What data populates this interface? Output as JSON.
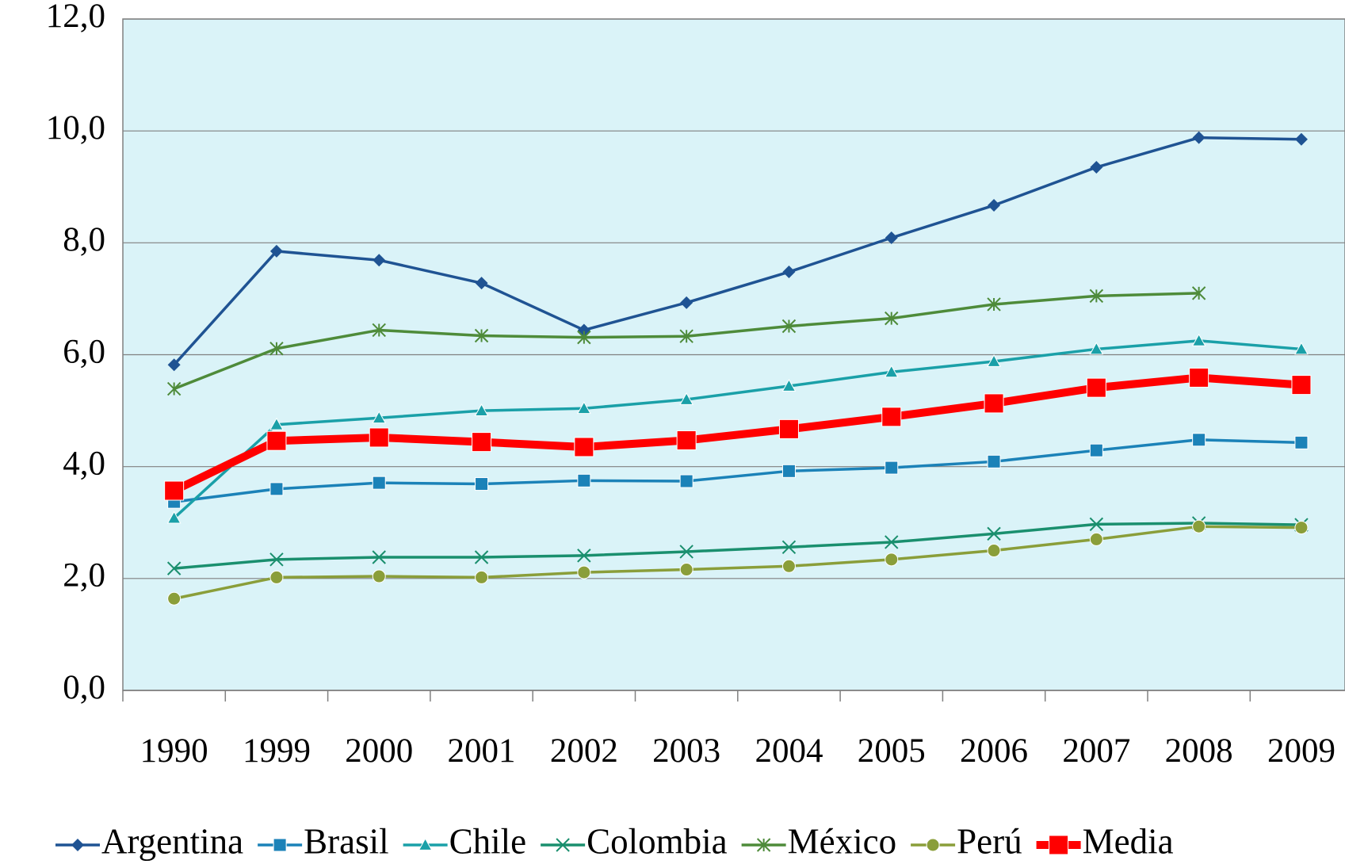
{
  "chart_data": {
    "type": "line",
    "categories": [
      "1990",
      "1999",
      "2000",
      "2001",
      "2002",
      "2003",
      "2004",
      "2005",
      "2006",
      "2007",
      "2008",
      "2009"
    ],
    "series": [
      {
        "name": "Argentina",
        "color": "#1f5393",
        "marker": "diamond",
        "values": [
          5.82,
          7.85,
          7.69,
          7.28,
          6.44,
          6.93,
          7.48,
          8.09,
          8.67,
          9.35,
          9.88,
          9.85
        ]
      },
      {
        "name": "Brasil",
        "color": "#1b82b8",
        "marker": "square",
        "values": [
          3.37,
          3.6,
          3.71,
          3.69,
          3.75,
          3.74,
          3.92,
          3.98,
          4.09,
          4.29,
          4.48,
          4.43
        ]
      },
      {
        "name": "Chile",
        "color": "#1aa0a8",
        "marker": "triangle",
        "values": [
          3.08,
          4.75,
          4.87,
          5.0,
          5.04,
          5.2,
          5.44,
          5.69,
          5.88,
          6.1,
          6.25,
          6.1
        ]
      },
      {
        "name": "Colombia",
        "color": "#1a8f6e",
        "marker": "x",
        "values": [
          2.18,
          2.34,
          2.38,
          2.38,
          2.41,
          2.48,
          2.56,
          2.65,
          2.8,
          2.97,
          2.99,
          2.96
        ]
      },
      {
        "name": "México",
        "color": "#4e8b3a",
        "marker": "star",
        "values": [
          5.39,
          6.11,
          6.44,
          6.34,
          6.31,
          6.33,
          6.51,
          6.65,
          6.9,
          7.05,
          7.1,
          null
        ]
      },
      {
        "name": "Perú",
        "color": "#8a9e3a",
        "marker": "circle",
        "values": [
          1.64,
          2.02,
          2.04,
          2.02,
          2.11,
          2.16,
          2.22,
          2.34,
          2.5,
          2.7,
          2.93,
          2.91
        ]
      },
      {
        "name": "Media",
        "color": "#ff0000",
        "marker": "square",
        "bold": true,
        "values": [
          3.57,
          4.46,
          4.52,
          4.44,
          4.35,
          4.47,
          4.67,
          4.89,
          5.13,
          5.41,
          5.59,
          5.46
        ]
      }
    ],
    "ylim": [
      0,
      12
    ],
    "yticks": [
      {
        "value": 0,
        "label": "0,0"
      },
      {
        "value": 2,
        "label": "2,0"
      },
      {
        "value": 4,
        "label": "4,0"
      },
      {
        "value": 6,
        "label": "6,0"
      },
      {
        "value": 8,
        "label": "8,0"
      },
      {
        "value": 10,
        "label": "10,0"
      },
      {
        "value": 12,
        "label": "12,0"
      }
    ],
    "grid": true,
    "legend": "bottom"
  }
}
